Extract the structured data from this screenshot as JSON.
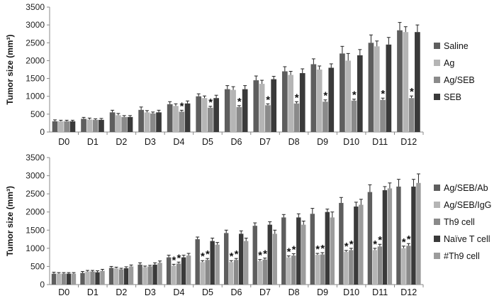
{
  "chart_data": [
    {
      "type": "bar",
      "ylabel": "Tumor size (mm³)",
      "ylim": [
        0,
        3500
      ],
      "yticks": [
        "0",
        "500",
        "1000",
        "1500",
        "2000",
        "2500",
        "3000",
        "3500"
      ],
      "categories": [
        "D0",
        "D1",
        "D2",
        "D3",
        "D4",
        "D5",
        "D6",
        "D7",
        "D8",
        "D9",
        "D10",
        "D11",
        "D12"
      ],
      "legend_position": "right",
      "grid": false,
      "series": [
        {
          "name": "Saline",
          "color": "#5e5e5e",
          "values": [
            300,
            370,
            550,
            620,
            780,
            1000,
            1200,
            1450,
            1700,
            1900,
            2200,
            2500,
            2850
          ],
          "errors": [
            40,
            40,
            60,
            80,
            70,
            70,
            100,
            120,
            130,
            150,
            200,
            220,
            220
          ]
        },
        {
          "name": "Ag",
          "color": "#b5b5b5",
          "values": [
            300,
            350,
            470,
            550,
            730,
            950,
            1180,
            1350,
            1600,
            1750,
            2000,
            2400,
            2800
          ],
          "errors": [
            30,
            40,
            50,
            50,
            60,
            60,
            90,
            100,
            100,
            100,
            200,
            150,
            150
          ]
        },
        {
          "name": "Ag/SEB",
          "color": "#8a8a8a",
          "values": [
            300,
            340,
            420,
            520,
            570,
            680,
            700,
            750,
            800,
            850,
            880,
            900,
            950
          ],
          "errors": [
            30,
            30,
            40,
            40,
            40,
            40,
            40,
            40,
            50,
            50,
            40,
            50,
            60
          ],
          "annotation": [
            "",
            "",
            "",
            "",
            "*",
            "*",
            "*",
            "*",
            "*",
            "*",
            "*",
            "*",
            "*"
          ]
        },
        {
          "name": "SEB",
          "color": "#3a3a3a",
          "values": [
            300,
            340,
            420,
            550,
            800,
            950,
            1200,
            1480,
            1650,
            1800,
            2150,
            2450,
            2800
          ],
          "errors": [
            30,
            40,
            40,
            60,
            70,
            80,
            100,
            80,
            120,
            110,
            160,
            200,
            200
          ]
        }
      ]
    },
    {
      "type": "bar",
      "ylabel": "Tumor size (mm³)",
      "ylim": [
        0,
        3500
      ],
      "yticks": [
        "0",
        "500",
        "1000",
        "1500",
        "2000",
        "2500",
        "3000",
        "3500"
      ],
      "categories": [
        "D0",
        "D1",
        "D2",
        "D3",
        "D4",
        "D5",
        "D6",
        "D7",
        "D8",
        "D9",
        "D10",
        "D11",
        "D12"
      ],
      "legend_position": "right",
      "grid": false,
      "series": [
        {
          "name": "Ag/SEB/Ab",
          "color": "#5e5e5e",
          "values": [
            300,
            320,
            460,
            550,
            750,
            1250,
            1420,
            1620,
            1850,
            1950,
            2250,
            2550,
            2700
          ],
          "errors": [
            40,
            40,
            40,
            50,
            60,
            60,
            80,
            80,
            80,
            150,
            150,
            200,
            200
          ]
        },
        {
          "name": "Ag/SEB/IgG",
          "color": "#b5b5b5",
          "values": [
            300,
            360,
            450,
            480,
            520,
            620,
            620,
            650,
            750,
            820,
            900,
            950,
            1000
          ],
          "errors": [
            30,
            30,
            30,
            30,
            40,
            40,
            40,
            40,
            40,
            40,
            40,
            50,
            60
          ]
        },
        {
          "name": "Th9 cell",
          "color": "#8a8a8a",
          "values": [
            300,
            360,
            420,
            500,
            580,
            680,
            680,
            690,
            800,
            830,
            950,
            1050,
            1070
          ],
          "errors": [
            30,
            30,
            30,
            30,
            40,
            40,
            40,
            40,
            50,
            50,
            50,
            60,
            60
          ],
          "annotation": [
            "",
            "",
            "",
            "",
            "*",
            "*",
            "*",
            "*",
            "*",
            "*",
            "*",
            "*",
            "*"
          ]
        },
        {
          "name": "Naïve T cell",
          "color": "#3a3a3a",
          "values": [
            300,
            340,
            450,
            550,
            750,
            1200,
            1400,
            1650,
            1850,
            2000,
            2150,
            2600,
            2700
          ],
          "errors": [
            30,
            40,
            40,
            50,
            60,
            80,
            80,
            80,
            100,
            80,
            120,
            100,
            200
          ]
        },
        {
          "name": "#Th9 cell",
          "color": "#9c9c9c",
          "values": [
            300,
            380,
            500,
            600,
            800,
            1100,
            1200,
            1400,
            1650,
            1850,
            2200,
            2650,
            2800
          ],
          "errors": [
            30,
            40,
            40,
            50,
            60,
            60,
            80,
            100,
            100,
            150,
            150,
            150,
            250
          ]
        }
      ],
      "annotated_series": [
        1,
        2
      ]
    }
  ]
}
